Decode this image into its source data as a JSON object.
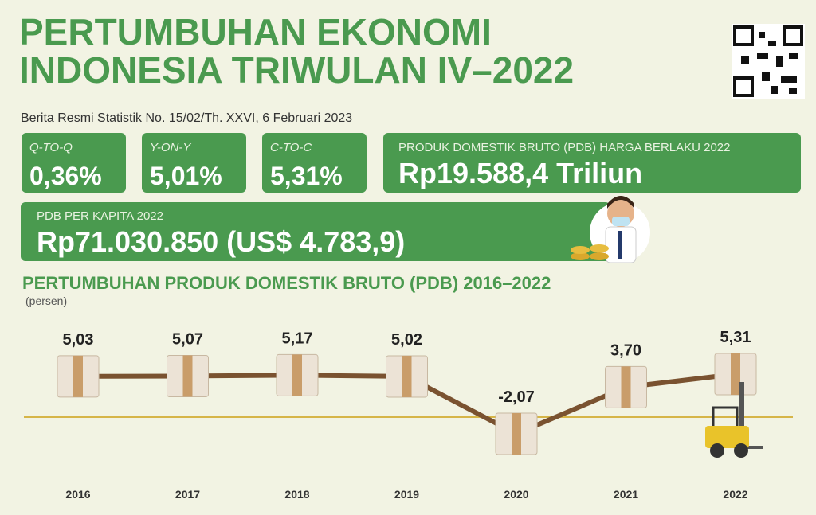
{
  "header": {
    "title_line1": "PERTUMBUHAN EKONOMI",
    "title_line2": "INDONESIA TRIWULAN IV–2022",
    "subtitle": "Berita Resmi Statistik No. 15/02/Th. XXVI, 6 Februari 2023"
  },
  "stats": [
    {
      "label": "Q-TO-Q",
      "value": "0,36%"
    },
    {
      "label": "Y-ON-Y",
      "value": "5,01%"
    },
    {
      "label": "C-TO-C",
      "value": "5,31%"
    }
  ],
  "gdp": {
    "label": "PRODUK DOMESTIK BRUTO (PDB) HARGA BERLAKU 2022",
    "value": "Rp19.588,4 Triliun"
  },
  "per_capita": {
    "label": "PDB PER KAPITA 2022",
    "value": "Rp71.030.850 (US$ 4.783,9)"
  },
  "chart_data": {
    "type": "line",
    "title": "PERTUMBUHAN PRODUK DOMESTIK BRUTO (PDB) 2016–2022",
    "y_label": "(persen)",
    "categories": [
      "2016",
      "2017",
      "2018",
      "2019",
      "2020",
      "2021",
      "2022"
    ],
    "values": [
      5.03,
      5.07,
      5.17,
      5.02,
      -2.07,
      3.7,
      5.31
    ],
    "value_labels": [
      "5,03",
      "5,07",
      "5,17",
      "5,02",
      "-2,07",
      "3,70",
      "5,31"
    ],
    "color": "#7a5230"
  }
}
